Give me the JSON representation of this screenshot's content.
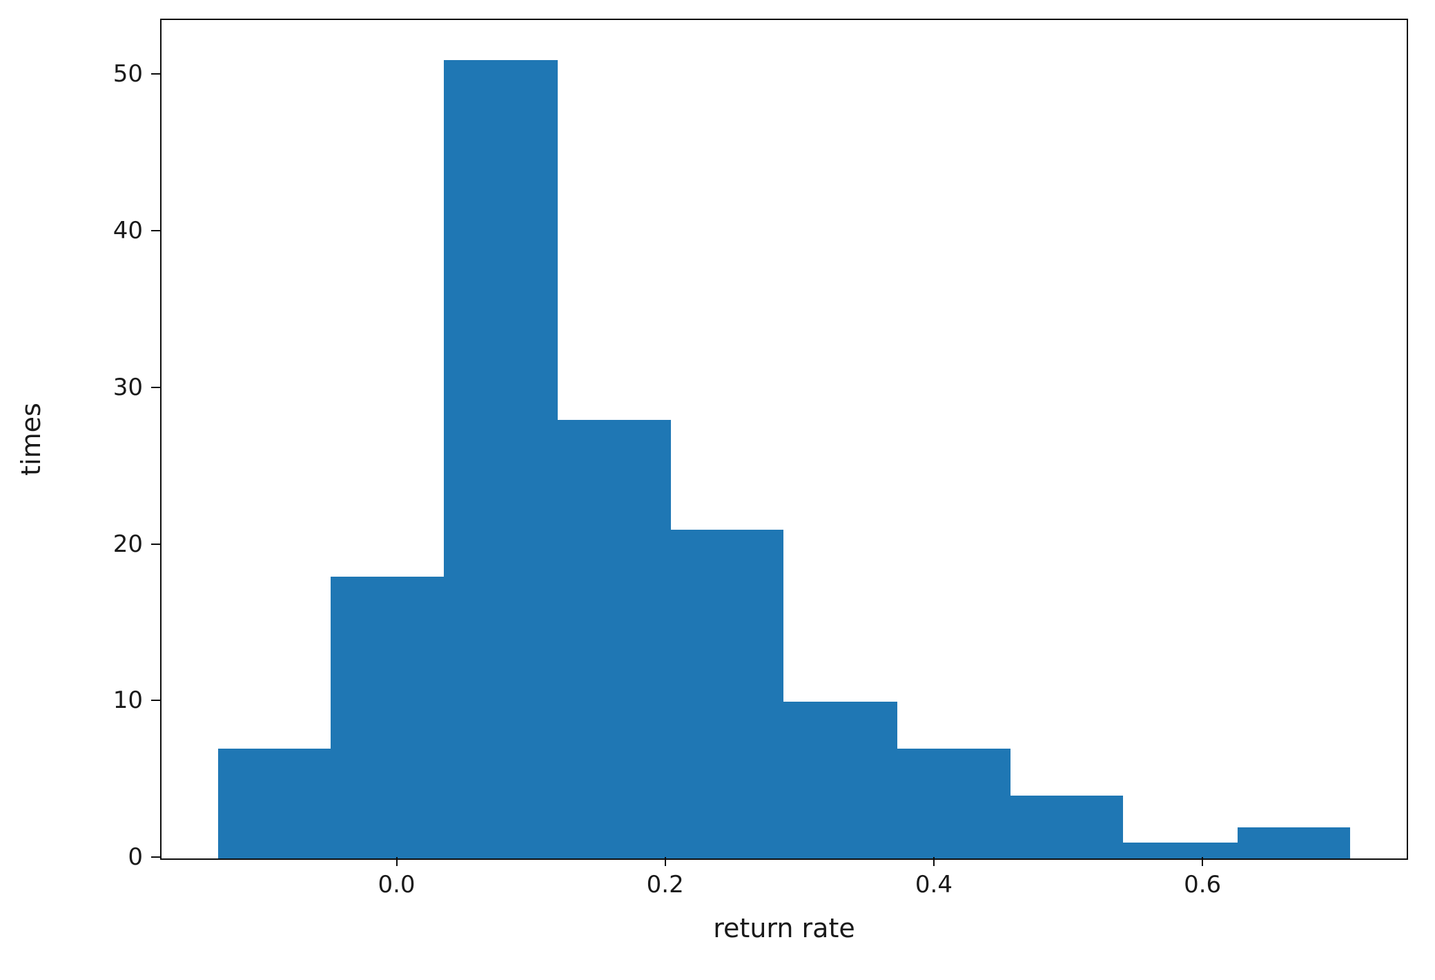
{
  "chart_data": {
    "type": "bar",
    "subtype": "histogram",
    "title": "",
    "xlabel": "return rate",
    "ylabel": "times",
    "bin_edges": [
      -0.134,
      -0.05,
      0.034,
      0.119,
      0.203,
      0.287,
      0.372,
      0.456,
      0.54,
      0.625,
      0.709
    ],
    "values": [
      7,
      18,
      51,
      28,
      21,
      10,
      7,
      4,
      1,
      2
    ],
    "xticks": [
      0.0,
      0.2,
      0.4,
      0.6
    ],
    "xtick_labels": [
      "0.0",
      "0.2",
      "0.4",
      "0.6"
    ],
    "yticks": [
      0,
      10,
      20,
      30,
      40,
      50
    ],
    "ytick_labels": [
      "0",
      "10",
      "20",
      "30",
      "40",
      "50"
    ],
    "xlim": [
      -0.176,
      0.751
    ],
    "ylim": [
      0,
      53.55
    ],
    "bar_color": "#1f77b4",
    "grid": false,
    "legend": null
  }
}
